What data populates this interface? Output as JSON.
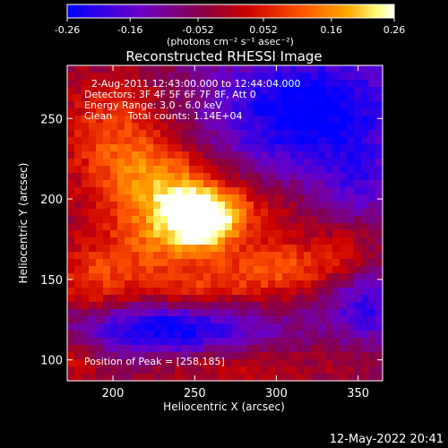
{
  "chart_data": [
    {
      "type": "colorbar",
      "colormap": "purple-red-orange-yellow-white",
      "colors": {
        "low": "#0000ff",
        "mid_low": "#6a00c8",
        "mid": "#cc0000",
        "mid_high": "#ff8800",
        "high": "#ffff80",
        "top": "#ffffff"
      },
      "range": [
        -0.26,
        0.26
      ],
      "tick_labels": [
        "-0.26",
        "-0.16",
        "-0.052",
        "0.052",
        "0.16",
        "0.26"
      ],
      "tick_values": [
        -0.26,
        -0.16,
        -0.052,
        0.052,
        0.16,
        0.26
      ],
      "units_label": "(photons cm⁻² s⁻¹ asec⁻²)"
    },
    {
      "type": "heatmap",
      "title": "Reconstructed RHESSI Image",
      "xlabel": "Heliocentric X (arcsec)",
      "ylabel": "Heliocentric Y (arcsec)",
      "xlim": [
        172,
        365
      ],
      "ylim": [
        87,
        283
      ],
      "x_ticks": [
        200,
        250,
        300,
        350
      ],
      "y_ticks": [
        100,
        150,
        200,
        250
      ],
      "value_range": [
        -0.26,
        0.26
      ],
      "peak": [
        258,
        185
      ],
      "annotations": [
        "2-Aug-2011 12:43:00.000 to 12:44:04.000",
        "Detectors: 3F 4F 5F 6F 7F 8F, Att 0",
        "Energy Range: 3.0 - 6.0 keV",
        "Clean     Total counts: 1.14E+04",
        "Position of Peak = [258,185]"
      ],
      "sources": [
        {
          "x": 255,
          "y": 187,
          "amp": 0.29,
          "sx": 16,
          "sy": 14
        },
        {
          "x": 234,
          "y": 200,
          "amp": 0.1,
          "sx": 18,
          "sy": 22
        },
        {
          "x": 222,
          "y": 208,
          "amp": 0.13,
          "sx": 28,
          "sy": 20
        },
        {
          "x": 280,
          "y": 192,
          "amp": 0.1,
          "sx": 24,
          "sy": 14
        },
        {
          "x": 200,
          "y": 244,
          "amp": 0.14,
          "sx": 24,
          "sy": 26
        },
        {
          "x": 190,
          "y": 150,
          "amp": 0.14,
          "sx": 22,
          "sy": 20
        },
        {
          "x": 310,
          "y": 160,
          "amp": 0.12,
          "sx": 26,
          "sy": 12
        },
        {
          "x": 275,
          "y": 148,
          "amp": 0.1,
          "sx": 30,
          "sy": 12
        },
        {
          "x": 245,
          "y": 140,
          "amp": 0.07,
          "sx": 20,
          "sy": 10
        },
        {
          "x": 225,
          "y": 170,
          "amp": 0.08,
          "sx": 20,
          "sy": 16
        },
        {
          "x": 345,
          "y": 170,
          "amp": 0.06,
          "sx": 14,
          "sy": 14
        },
        {
          "x": 175,
          "y": 100,
          "amp": 0.08,
          "sx": 14,
          "sy": 14
        },
        {
          "x": 270,
          "y": 95,
          "amp": 0.08,
          "sx": 40,
          "sy": 10
        },
        {
          "x": 345,
          "y": 100,
          "amp": 0.04,
          "sx": 18,
          "sy": 14
        },
        {
          "x": 320,
          "y": 255,
          "amp": -0.22,
          "sx": 42,
          "sy": 28
        },
        {
          "x": 230,
          "y": 120,
          "amp": -0.22,
          "sx": 42,
          "sy": 12
        },
        {
          "x": 355,
          "y": 132,
          "amp": -0.14,
          "sx": 18,
          "sy": 18
        },
        {
          "x": 350,
          "y": 210,
          "amp": -0.09,
          "sx": 14,
          "sy": 18
        }
      ]
    }
  ],
  "footer": {
    "timestamp": "12-May-2022 20:41"
  }
}
